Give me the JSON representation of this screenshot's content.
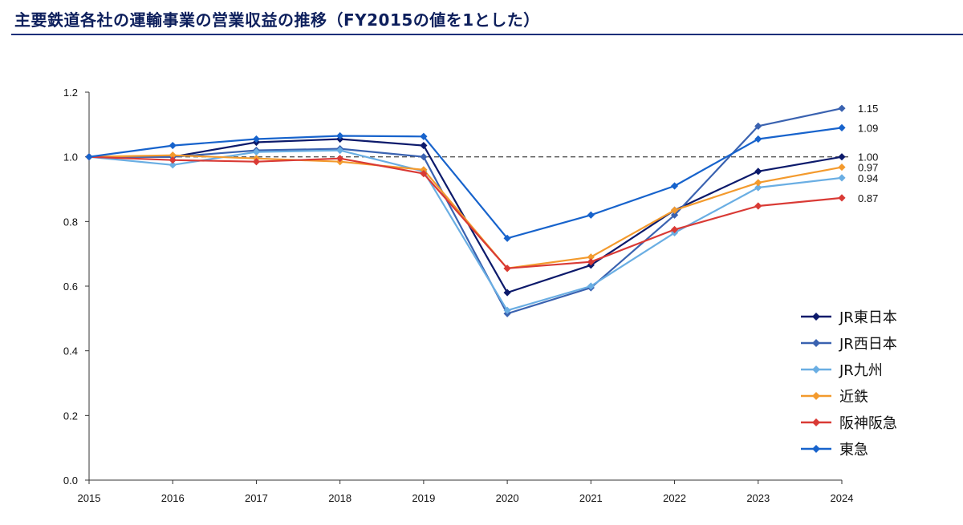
{
  "title": "主要鉄道各社の運輸事業の営業収益の推移（FY2015の値を1とした）",
  "colors": {
    "title": "#0d1f5c",
    "rule": "#1c2f7a",
    "axis": "#333333",
    "reference_line": "#555555"
  },
  "chart_data": {
    "type": "line",
    "title": "主要鉄道各社の運輸事業の営業収益の推移（FY2015の値を1とした）",
    "xlabel": "",
    "ylabel": "",
    "x": [
      "2015",
      "2016",
      "2017",
      "2018",
      "2019",
      "2020",
      "2021",
      "2022",
      "2023",
      "2024"
    ],
    "ylim": [
      0,
      1.2
    ],
    "yticks": [
      "0.0",
      "0.2",
      "0.4",
      "0.6",
      "0.8",
      "1.0",
      "1.2"
    ],
    "reference_line": {
      "y": 1.0,
      "style": "dashed"
    },
    "grid": false,
    "legend_position": "bottom-right",
    "series": [
      {
        "name": "JR東日本",
        "color": "#0c1a6b",
        "end_label": "1.00",
        "values": [
          1.0,
          1.0,
          1.045,
          1.055,
          1.035,
          0.58,
          0.665,
          0.835,
          0.955,
          1.0
        ]
      },
      {
        "name": "JR西日本",
        "color": "#3a62b0",
        "end_label": "1.15",
        "values": [
          1.0,
          1.0,
          1.02,
          1.025,
          1.0,
          0.515,
          0.595,
          0.82,
          1.095,
          1.15
        ]
      },
      {
        "name": "JR九州",
        "color": "#6aaee3",
        "end_label": "0.94",
        "values": [
          1.0,
          0.975,
          1.015,
          1.02,
          0.955,
          0.525,
          0.6,
          0.765,
          0.905,
          0.935
        ]
      },
      {
        "name": "近鉄",
        "color": "#f39a2d",
        "end_label": "0.97",
        "values": [
          1.0,
          1.005,
          0.995,
          0.985,
          0.96,
          0.655,
          0.69,
          0.835,
          0.92,
          0.968
        ]
      },
      {
        "name": "阪神阪急",
        "color": "#d93a35",
        "end_label": "0.87",
        "values": [
          1.0,
          0.99,
          0.985,
          0.995,
          0.948,
          0.655,
          0.675,
          0.775,
          0.848,
          0.873
        ]
      },
      {
        "name": "東急",
        "color": "#1763cc",
        "end_label": "1.09",
        "values": [
          1.0,
          1.035,
          1.055,
          1.065,
          1.063,
          0.748,
          0.82,
          0.91,
          1.055,
          1.09
        ]
      }
    ]
  }
}
